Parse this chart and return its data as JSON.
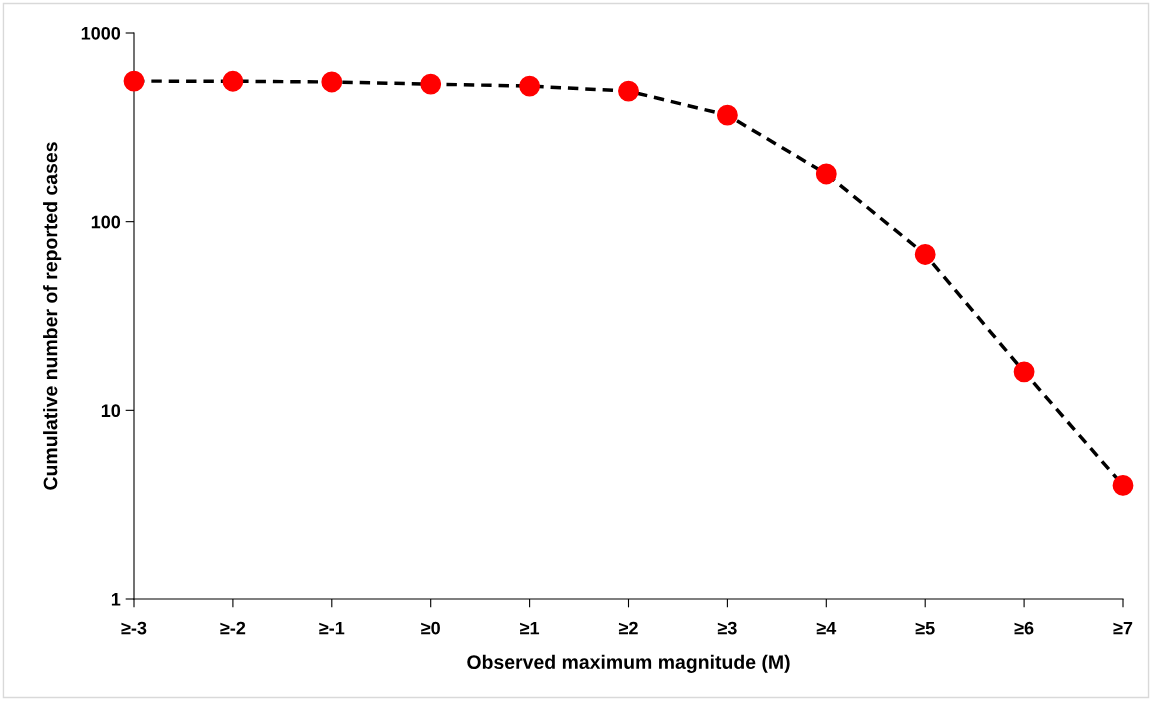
{
  "chart_data": {
    "type": "line",
    "xlabel": "Observed maximum magnitude (M)",
    "ylabel": "Cumulative number of reported cases",
    "categories": [
      "≥-3",
      "≥-2",
      "≥-1",
      "≥0",
      "≥1",
      "≥2",
      "≥3",
      "≥4",
      "≥5",
      "≥6",
      "≥7"
    ],
    "series": [
      {
        "color": "#ff0000",
        "values": [
          556,
          555,
          550,
          536,
          523,
          492,
          367,
          179,
          67,
          16,
          4
        ]
      }
    ],
    "log": true,
    "ylim": [
      1,
      1000
    ],
    "yticks": [
      1,
      10,
      100,
      1000
    ],
    "grid": false,
    "legend": false,
    "marker": "circle",
    "line_style": "dashed"
  }
}
